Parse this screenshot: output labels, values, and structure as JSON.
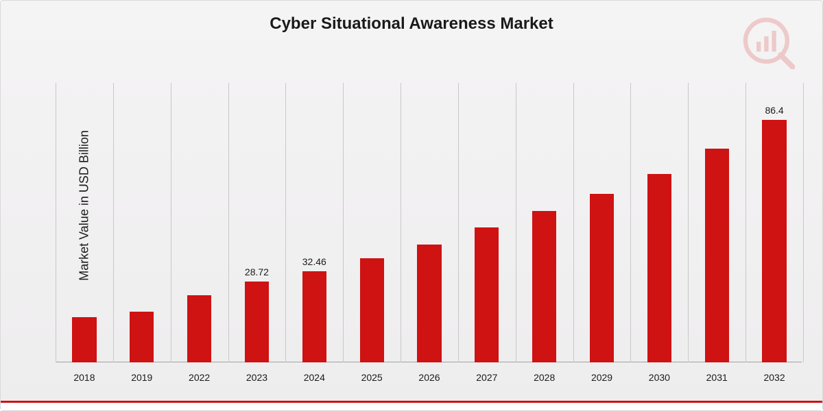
{
  "chart": {
    "type": "bar",
    "title": "Cyber Situational Awareness Market",
    "title_fontsize": 24,
    "title_color": "#1a1a1a",
    "ylabel": "Market Value in USD Billion",
    "ylabel_fontsize": 18,
    "background_gradient_top": "#f5f4f5",
    "background_gradient_bottom": "#eeedee",
    "border_color": "#d9d9d9",
    "grid_color": "#c8c8c8",
    "baseline_color": "#a0a0a0",
    "bar_color": "#cf1212",
    "bar_width_ratio": 0.42,
    "ylim": [
      0,
      100
    ],
    "label_fontsize": 14,
    "categories": [
      "2018",
      "2019",
      "2022",
      "2023",
      "2024",
      "2025",
      "2026",
      "2027",
      "2028",
      "2029",
      "2030",
      "2031",
      "2032"
    ],
    "values": [
      16,
      18,
      24,
      28.72,
      32.46,
      37,
      42,
      48,
      54,
      60,
      67,
      76,
      86.4
    ],
    "value_labels": {
      "3": "28.72",
      "4": "32.46",
      "12": "86.4"
    },
    "footer_accent_color": "#cf1212",
    "footer_bg": "#ffffff",
    "logo_color": "#cf1212",
    "logo_opacity": 0.18
  }
}
